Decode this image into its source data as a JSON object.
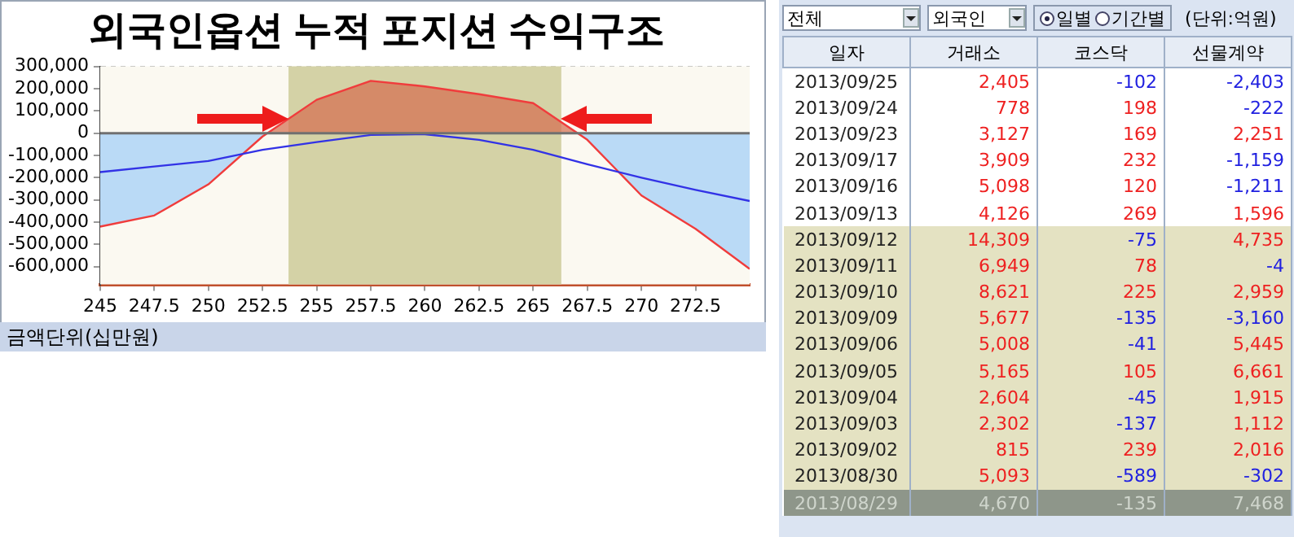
{
  "chart_data": [
    {
      "type": "line",
      "title": "외국인옵션 누적 포지션 수익구조",
      "x": [
        245,
        247.5,
        250,
        252.5,
        255,
        257.5,
        260,
        262.5,
        265,
        267.5,
        270,
        272.5,
        275
      ],
      "series": [
        {
          "type": "area",
          "color": "#f03c3c",
          "values": [
            -420000,
            -370000,
            -230000,
            -15000,
            150000,
            235000,
            210000,
            175000,
            135000,
            -30000,
            -280000,
            -430000,
            -610000
          ]
        },
        {
          "type": "line",
          "color": "#3232e6",
          "values": [
            -175000,
            -150000,
            -125000,
            -75000,
            -40000,
            -8000,
            -5000,
            -30000,
            -75000,
            -140000,
            -200000,
            -255000,
            -305000
          ]
        }
      ],
      "xlim": [
        245,
        275
      ],
      "xticks": [
        245,
        247.5,
        250,
        252.5,
        255,
        257.5,
        260,
        262.5,
        265,
        267.5,
        270,
        272.5
      ],
      "ylim": [
        -680000,
        300000
      ],
      "yticks": [
        {
          "value": 300000,
          "label": "300,000"
        },
        {
          "value": 200000,
          "label": "200,000"
        },
        {
          "value": 100000,
          "label": "100,000"
        },
        0,
        {
          "value": -100000,
          "label": "-100,000"
        },
        {
          "value": -200000,
          "label": "-200,000"
        },
        {
          "value": -300000,
          "label": "-300,000"
        },
        {
          "value": -400000,
          "label": "-400,000"
        },
        {
          "value": -500000,
          "label": "-500,000"
        },
        {
          "value": -600000,
          "label": "-600,000"
        }
      ],
      "bands": [
        {
          "axis": "x",
          "from": 253.7,
          "to": 266.3,
          "color": "#d4d2a6"
        }
      ],
      "ref_lines": [
        {
          "axis": "y",
          "value": 0,
          "color": "#707070"
        }
      ],
      "grid": true,
      "legend": false,
      "marker": "none",
      "annotations": [
        "금액단위(십만원)"
      ]
    },
    {
      "type": "other",
      "annotations": [
        "전체",
        "외국인",
        "일별",
        "기간별",
        "(단위:억원)"
      ],
      "ylabel": "일자",
      "categories": [
        "거래소",
        "코스닥",
        "선물계약"
      ],
      "y_categories": [
        "2013/09/25",
        "2013/09/24",
        "2013/09/23",
        "2013/09/17",
        "2013/09/16",
        "2013/09/13",
        "2013/09/12",
        "2013/09/11",
        "2013/09/10",
        "2013/09/09",
        "2013/09/06",
        "2013/09/05",
        "2013/09/04",
        "2013/09/03",
        "2013/09/02",
        "2013/08/30",
        "2013/08/29"
      ],
      "cell_labels": [
        [
          "2,405",
          "-102",
          "-2,403"
        ],
        [
          "778",
          "198",
          "-222"
        ],
        [
          "3,127",
          "169",
          "2,251"
        ],
        [
          "3,909",
          "232",
          "-1,159"
        ],
        [
          "5,098",
          "120",
          "-1,211"
        ],
        [
          "4,126",
          "269",
          "1,596"
        ],
        [
          "14,309",
          "-75",
          "4,735"
        ],
        [
          "6,949",
          "78",
          "-4"
        ],
        [
          "8,621",
          "225",
          "2,959"
        ],
        [
          "5,677",
          "-135",
          "-3,160"
        ],
        [
          "5,008",
          "-41",
          "5,445"
        ],
        [
          "5,165",
          "105",
          "6,661"
        ],
        [
          "2,604",
          "-45",
          "1,915"
        ],
        [
          "2,302",
          "-137",
          "1,112"
        ],
        [
          "815",
          "239",
          "2,016"
        ],
        [
          "5,093",
          "-589",
          "-302"
        ],
        [
          "4,670",
          "-135",
          "7,468"
        ]
      ]
    }
  ]
}
